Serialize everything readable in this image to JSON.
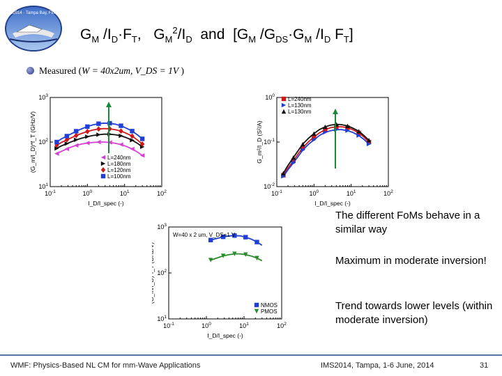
{
  "header": {
    "title": "G_M /I_D·F_T, G_M²/I_D and [G_M /G_DS·G_M /I_D F_T]",
    "logo_text": "IMS2014 · Tampa Bay, Florida"
  },
  "measured": {
    "prefix": "Measured (",
    "eq1": "W = 40x2um",
    "sep": ", ",
    "eq2": "V_DS = 1V",
    "suffix": " )"
  },
  "notes": [
    "The different FoMs behave in a similar way",
    "Maximum in moderate inversion!",
    "Trend towards lower levels (within moderate inversion)"
  ],
  "footer": {
    "left": "WMF: Physics-Based NL CM for mm-Wave Applications",
    "center": "IMS2014, Tampa, 1-6 June, 2014",
    "page": "31"
  },
  "colors": {
    "magenta": "#d63fd6",
    "black": "#111111",
    "red": "#d01818",
    "blue": "#1f3fd6",
    "green": "#2b8a2b",
    "arrow": "#1a8a3a",
    "footer_line": "#5b6fa8"
  },
  "chart_data": [
    {
      "type": "scatter",
      "id": "plot1",
      "ylabel": "(G_m/I_D)*f_T (GHz/V)",
      "xlabel": "I_D/I_spec (-)",
      "x_log": true,
      "y_log": true,
      "xlim": [
        0.1,
        100
      ],
      "ylim": [
        10,
        1000
      ],
      "x_ticks": [
        "10^-1",
        "10^0",
        "10^1",
        "10^2"
      ],
      "y_ticks": [
        "10^1",
        "10^2",
        "10^3"
      ],
      "legend_position": "bottom-right",
      "series": [
        {
          "name": "L=240nm",
          "color": "#d63fd6",
          "marker": "triangle-left",
          "x": [
            0.15,
            0.2,
            0.28,
            0.38,
            0.5,
            0.7,
            1,
            1.4,
            2,
            2.8,
            4,
            5.6,
            8,
            11,
            16,
            22,
            30
          ],
          "y": [
            55,
            62,
            70,
            78,
            84,
            90,
            95,
            98,
            100,
            100,
            98,
            94,
            88,
            80,
            70,
            60,
            50
          ]
        },
        {
          "name": "L=180nm",
          "color": "#111111",
          "marker": "triangle-right",
          "x": [
            0.15,
            0.2,
            0.28,
            0.38,
            0.5,
            0.7,
            1,
            1.4,
            2,
            2.8,
            4,
            5.6,
            8,
            11,
            16,
            22,
            30
          ],
          "y": [
            72,
            82,
            92,
            102,
            112,
            122,
            132,
            140,
            146,
            150,
            150,
            146,
            138,
            126,
            110,
            94,
            78
          ]
        },
        {
          "name": "L=120nm",
          "color": "#d01818",
          "marker": "diamond",
          "x": [
            0.15,
            0.2,
            0.28,
            0.38,
            0.5,
            0.7,
            1,
            1.4,
            2,
            2.8,
            4,
            5.6,
            8,
            11,
            16,
            22,
            30
          ],
          "y": [
            85,
            98,
            112,
            126,
            140,
            156,
            172,
            186,
            196,
            200,
            198,
            190,
            176,
            158,
            136,
            112,
            90
          ]
        },
        {
          "name": "L=100nm",
          "color": "#1f3fd6",
          "marker": "square",
          "x": [
            0.15,
            0.2,
            0.28,
            0.38,
            0.5,
            0.7,
            1,
            1.4,
            2,
            2.8,
            4,
            5.6,
            8,
            11,
            16,
            22,
            30
          ],
          "y": [
            100,
            118,
            136,
            155,
            175,
            198,
            222,
            242,
            258,
            266,
            264,
            252,
            232,
            206,
            176,
            146,
            118
          ]
        }
      ]
    },
    {
      "type": "scatter",
      "id": "plot2",
      "ylabel": "G_m²/I_D (S²/A)",
      "xlabel": "I_D/I_spec (-)",
      "x_log": true,
      "y_log": true,
      "xlim": [
        0.1,
        100
      ],
      "ylim": [
        0.01,
        1
      ],
      "x_ticks": [
        "10^-1",
        "10^0",
        "10^1",
        "10^2"
      ],
      "y_ticks": [
        "10^-2",
        "10^-1",
        "10^0"
      ],
      "legend_position": "top-left",
      "series": [
        {
          "name": "L=240nm",
          "color": "#d01818",
          "marker": "square",
          "x": [
            0.15,
            0.2,
            0.28,
            0.38,
            0.5,
            0.7,
            1,
            1.4,
            2,
            2.8,
            4,
            5.6,
            8,
            11,
            16,
            22,
            30
          ],
          "y": [
            0.018,
            0.026,
            0.038,
            0.055,
            0.075,
            0.1,
            0.13,
            0.16,
            0.19,
            0.21,
            0.22,
            0.22,
            0.21,
            0.19,
            0.16,
            0.13,
            0.1
          ]
        },
        {
          "name": "L=130nm",
          "color": "#1f3fd6",
          "marker": "triangle-right",
          "x": [
            0.15,
            0.2,
            0.28,
            0.38,
            0.5,
            0.7,
            1,
            1.4,
            2,
            2.8,
            4,
            5.6,
            8,
            11,
            16,
            22,
            30
          ],
          "y": [
            0.017,
            0.024,
            0.034,
            0.048,
            0.066,
            0.088,
            0.112,
            0.14,
            0.165,
            0.18,
            0.19,
            0.19,
            0.18,
            0.165,
            0.14,
            0.115,
            0.09
          ]
        },
        {
          "name": "L=130nm",
          "color": "#111111",
          "marker": "triangle-up",
          "x": [
            0.15,
            0.2,
            0.28,
            0.38,
            0.5,
            0.7,
            1,
            1.4,
            2,
            2.8,
            4,
            5.6,
            8,
            11,
            16,
            22,
            30
          ],
          "y": [
            0.02,
            0.03,
            0.045,
            0.065,
            0.09,
            0.12,
            0.155,
            0.19,
            0.22,
            0.24,
            0.25,
            0.245,
            0.23,
            0.205,
            0.175,
            0.14,
            0.11
          ]
        }
      ]
    },
    {
      "type": "scatter",
      "id": "plot3",
      "ylabel": "(G_m/I_D)*f_T (GHz/V)",
      "xlabel": "I_D/I_spec (-)",
      "x_log": true,
      "y_log": true,
      "xlim": [
        0.1,
        100
      ],
      "ylim": [
        10,
        1000
      ],
      "x_ticks": [
        "10^-1",
        "10^0",
        "10^1",
        "10^2"
      ],
      "y_ticks": [
        "10^1",
        "10^2",
        "10^3"
      ],
      "annotation": "W=40 x 2 um, V_DS=1 V",
      "legend_position": "bottom-right",
      "series": [
        {
          "name": "NMOS",
          "color": "#1f3fd6",
          "marker": "square",
          "x": [
            1.3,
            2,
            2.8,
            4,
            5.6,
            8,
            11,
            16,
            22,
            30
          ],
          "y": [
            520,
            570,
            610,
            640,
            650,
            640,
            600,
            540,
            470,
            400
          ]
        },
        {
          "name": "PMOS",
          "color": "#2b8a2b",
          "marker": "triangle-down",
          "x": [
            1.3,
            2,
            2.8,
            4,
            5.6,
            8,
            11,
            16,
            22,
            30
          ],
          "y": [
            190,
            215,
            235,
            250,
            260,
            260,
            250,
            232,
            210,
            185
          ]
        }
      ]
    }
  ]
}
